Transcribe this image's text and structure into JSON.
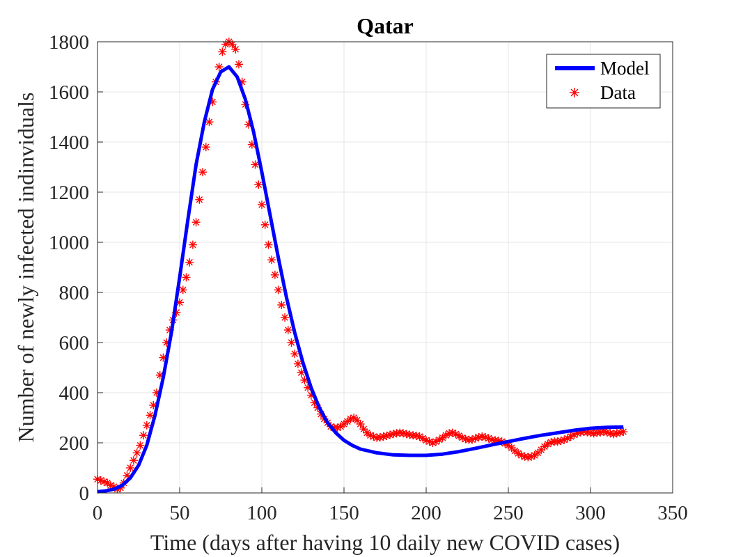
{
  "chart_data": {
    "type": "line",
    "title": "Qatar",
    "xlabel": "Time (days after having 10 daily new COVID cases)",
    "ylabel": "Number of newly infected indinviduals",
    "xlim": [
      0,
      350
    ],
    "ylim": [
      0,
      1800
    ],
    "xticks": [
      0,
      50,
      100,
      150,
      200,
      250,
      300,
      350
    ],
    "yticks": [
      0,
      200,
      400,
      600,
      800,
      1000,
      1200,
      1400,
      1600,
      1800
    ],
    "grid": true,
    "legend_position": "top-right",
    "series": [
      {
        "name": "Model",
        "style": "line",
        "color": "#0000ff",
        "x": [
          0,
          5,
          10,
          15,
          20,
          25,
          30,
          35,
          40,
          45,
          50,
          55,
          60,
          65,
          70,
          75,
          80,
          85,
          90,
          95,
          100,
          105,
          110,
          115,
          120,
          125,
          130,
          135,
          140,
          145,
          150,
          155,
          160,
          170,
          180,
          190,
          200,
          210,
          220,
          230,
          240,
          250,
          260,
          270,
          280,
          290,
          300,
          310,
          320
        ],
        "y": [
          5,
          8,
          15,
          30,
          60,
          110,
          190,
          310,
          460,
          640,
          860,
          1090,
          1310,
          1480,
          1610,
          1680,
          1700,
          1660,
          1570,
          1440,
          1280,
          1110,
          940,
          780,
          640,
          520,
          420,
          340,
          280,
          240,
          210,
          190,
          175,
          160,
          152,
          150,
          150,
          155,
          165,
          178,
          192,
          205,
          218,
          230,
          240,
          250,
          258,
          262,
          263
        ]
      },
      {
        "name": "Data",
        "style": "marker",
        "marker": "asterisk",
        "color": "#ff0000",
        "x": [
          0,
          2,
          4,
          6,
          8,
          10,
          12,
          14,
          16,
          18,
          20,
          22,
          24,
          26,
          28,
          30,
          32,
          34,
          36,
          38,
          40,
          42,
          44,
          46,
          48,
          50,
          52,
          54,
          56,
          58,
          60,
          62,
          64,
          66,
          68,
          70,
          72,
          74,
          76,
          78,
          80,
          82,
          84,
          86,
          88,
          90,
          92,
          94,
          96,
          98,
          100,
          102,
          104,
          106,
          108,
          110,
          112,
          114,
          116,
          118,
          120,
          122,
          124,
          126,
          128,
          130,
          132,
          134,
          136,
          138,
          140,
          142,
          144,
          146,
          148,
          150,
          152,
          154,
          156,
          158,
          160,
          162,
          164,
          166,
          168,
          170,
          172,
          174,
          176,
          178,
          180,
          182,
          184,
          186,
          188,
          190,
          192,
          194,
          196,
          198,
          200,
          202,
          204,
          206,
          208,
          210,
          212,
          214,
          216,
          218,
          220,
          222,
          224,
          226,
          228,
          230,
          232,
          234,
          236,
          238,
          240,
          242,
          244,
          246,
          248,
          250,
          252,
          254,
          256,
          258,
          260,
          262,
          264,
          266,
          268,
          270,
          272,
          274,
          276,
          278,
          280,
          282,
          284,
          286,
          288,
          290,
          292,
          294,
          296,
          298,
          300,
          302,
          304,
          306,
          308,
          310,
          312,
          314,
          316,
          318,
          320
        ],
        "y": [
          55,
          50,
          45,
          40,
          30,
          25,
          15,
          20,
          40,
          70,
          100,
          130,
          160,
          190,
          230,
          270,
          310,
          350,
          400,
          470,
          540,
          600,
          650,
          690,
          720,
          760,
          810,
          860,
          920,
          990,
          1080,
          1170,
          1280,
          1380,
          1480,
          1560,
          1640,
          1700,
          1760,
          1790,
          1800,
          1790,
          1770,
          1710,
          1640,
          1550,
          1470,
          1390,
          1310,
          1230,
          1150,
          1070,
          990,
          930,
          870,
          810,
          750,
          700,
          650,
          600,
          555,
          515,
          480,
          450,
          420,
          390,
          360,
          340,
          315,
          295,
          280,
          265,
          260,
          260,
          265,
          275,
          285,
          295,
          300,
          290,
          275,
          255,
          240,
          230,
          225,
          220,
          222,
          225,
          228,
          232,
          235,
          238,
          240,
          238,
          235,
          232,
          230,
          228,
          225,
          218,
          210,
          205,
          200,
          205,
          212,
          220,
          230,
          238,
          240,
          235,
          228,
          220,
          215,
          212,
          213,
          218,
          222,
          225,
          222,
          218,
          212,
          210,
          208,
          205,
          198,
          190,
          180,
          168,
          158,
          150,
          145,
          143,
          145,
          150,
          160,
          172,
          185,
          195,
          202,
          205,
          205,
          208,
          212,
          218,
          225,
          232,
          238,
          242,
          244,
          242,
          240,
          238,
          240,
          242,
          244,
          242,
          238,
          235,
          238,
          241,
          244
        ]
      }
    ]
  }
}
